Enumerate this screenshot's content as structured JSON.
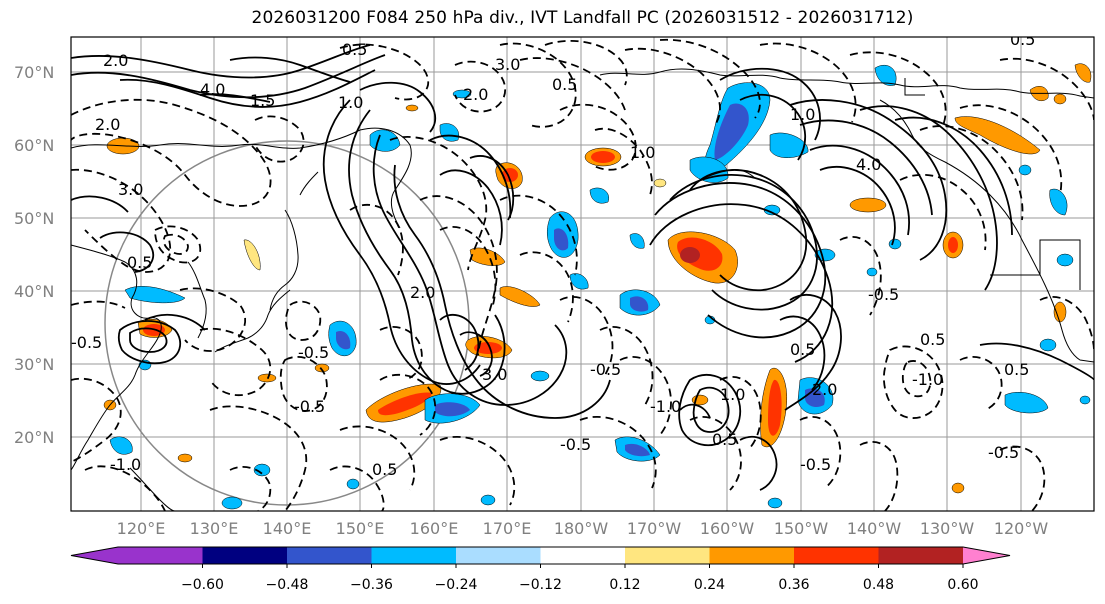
{
  "title": "2026031200 F084 250 hPa div., IVT Landfall PC (2026031512 - 2026031712)",
  "map": {
    "lat_labels": [
      "70°N",
      "60°N",
      "50°N",
      "40°N",
      "30°N",
      "20°N"
    ],
    "lon_labels": [
      "120°E",
      "130°E",
      "140°E",
      "150°E",
      "160°E",
      "170°E",
      "180°W",
      "170°W",
      "160°W",
      "150°W",
      "140°W",
      "130°W",
      "120°W"
    ],
    "contour_labels": [
      "2.0",
      "4.0",
      "1.5",
      "1.0",
      "0.5",
      "2.0",
      "3.0",
      "0.5",
      "1.0",
      "4.0",
      "1.0",
      "0.5",
      "2.0",
      "3.0",
      "0.5",
      "-0.5",
      "-1.0",
      "-0.5",
      "-0.5",
      "0.5",
      "-0.5",
      "3.0",
      "2.0",
      "-0.5",
      "-1.0",
      "-0.5",
      "0.5",
      "1.0",
      "0.5",
      "2.0",
      "-0.5",
      "0.5",
      "-1.0",
      "0.5",
      "-0.5"
    ]
  },
  "colorbar": {
    "tick_labels": [
      "−0.60",
      "−0.48",
      "−0.36",
      "−0.24",
      "−0.12",
      "0.12",
      "0.24",
      "0.36",
      "0.48",
      "0.60"
    ],
    "colors": [
      "#9933cc",
      "#000080",
      "#3355cc",
      "#00bbff",
      "#aaddff",
      "#ffffff",
      "#ffe680",
      "#ff9900",
      "#ff3300",
      "#b22222",
      "#ff88aa",
      "#ff80d0"
    ]
  }
}
